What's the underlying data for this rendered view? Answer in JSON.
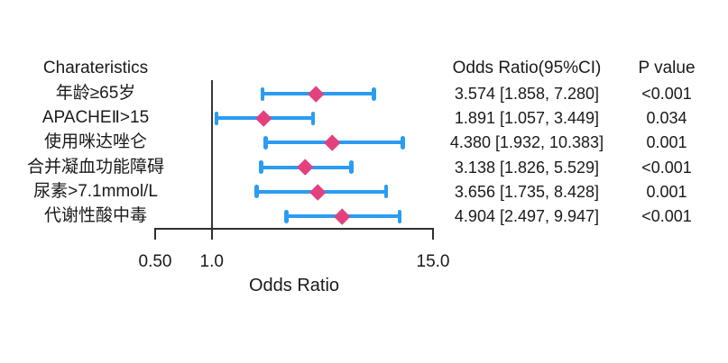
{
  "header": {
    "characteristics": "Charateristics",
    "odds_ratio": "Odds Ratio(95%CI)",
    "p_value": "P value"
  },
  "chart_data": {
    "type": "forest",
    "xlabel": "Odds Ratio",
    "x_scale": "log",
    "x_range": [
      0.5,
      15.0
    ],
    "reference_line": 1.0,
    "x_ticks": [
      {
        "value": 0.5,
        "label": "0.50"
      },
      {
        "value": 1.0,
        "label": "1.0"
      },
      {
        "value": 15.0,
        "label": "15.0"
      }
    ],
    "colors": {
      "ci_bar": "#2B9CF2",
      "marker": "#E2417E",
      "axis": "#2f2f2f"
    },
    "rows": [
      {
        "label": "年龄≥65岁",
        "or": 3.574,
        "ci_low": 1.858,
        "ci_high": 7.28,
        "or_text": "3.574 [1.858, 7.280]",
        "p": "<0.001"
      },
      {
        "label": "APACHEⅡ>15",
        "or": 1.891,
        "ci_low": 1.057,
        "ci_high": 3.449,
        "or_text": "1.891 [1.057, 3.449]",
        "p": "0.034"
      },
      {
        "label": "使用咪达唑仑",
        "or": 4.38,
        "ci_low": 1.932,
        "ci_high": 10.383,
        "or_text": "4.380 [1.932, 10.383]",
        "p": "0.001"
      },
      {
        "label": "合并凝血功能障碍",
        "or": 3.138,
        "ci_low": 1.826,
        "ci_high": 5.529,
        "or_text": "3.138 [1.826, 5.529]",
        "p": "<0.001"
      },
      {
        "label": "尿素>7.1mmol/L",
        "or": 3.656,
        "ci_low": 1.735,
        "ci_high": 8.428,
        "or_text": "3.656 [1.735, 8.428]",
        "p": "0.001"
      },
      {
        "label": "代谢性酸中毒",
        "or": 4.904,
        "ci_low": 2.497,
        "ci_high": 9.947,
        "or_text": "4.904 [2.497, 9.947]",
        "p": "<0.001"
      }
    ]
  }
}
